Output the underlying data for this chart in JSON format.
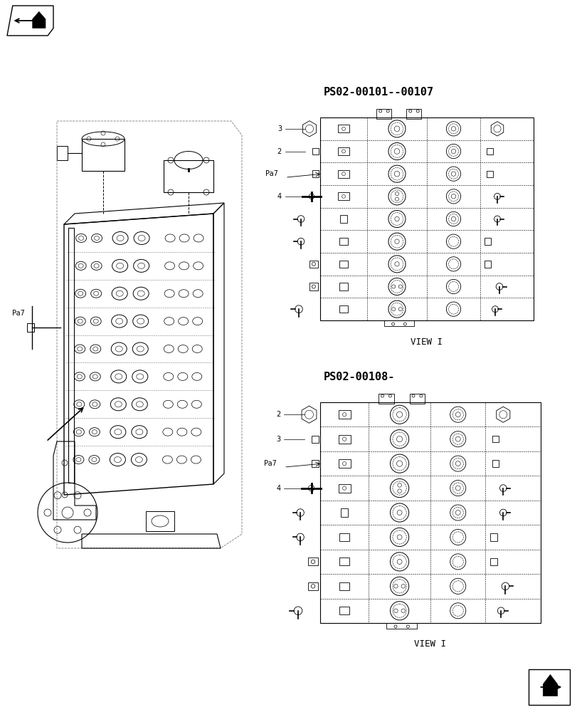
{
  "bg_color": "#ffffff",
  "fig_width": 8.12,
  "fig_height": 10.0,
  "dpi": 100,
  "label_ps1": "PS02-00101--00107",
  "label_ps2": "PS02-00108-",
  "label_view1": "VIEW I",
  "label_view2": "VIEW I",
  "lc": "#000000",
  "lc_gray": "#888888",
  "lc_dash": "#555555"
}
